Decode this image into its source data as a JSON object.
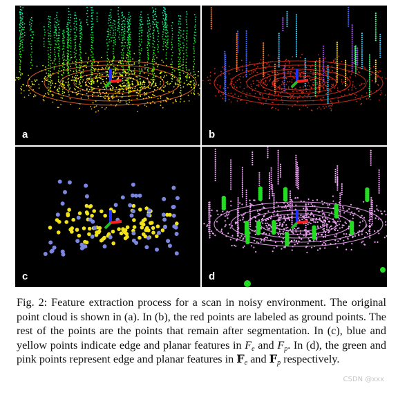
{
  "figure": {
    "panels": [
      {
        "id": "a",
        "label": "a",
        "description_icon": "point-cloud-colored-by-height"
      },
      {
        "id": "b",
        "label": "b",
        "description_icon": "point-cloud-segmented"
      },
      {
        "id": "c",
        "label": "c",
        "description_icon": "edge-planar-features"
      },
      {
        "id": "d",
        "label": "d",
        "description_icon": "edge-planar-map-features"
      }
    ],
    "colors": {
      "background": "#000000",
      "ground_red": "#d42a1a",
      "edge_blue": "#7b86e0",
      "planar_yellow": "#f2e21c",
      "edge_green": "#22dd22",
      "planar_pink": "#e9a0f0",
      "axis_red": "#ff2020",
      "axis_green": "#20c020",
      "axis_blue": "#2030ff"
    }
  },
  "caption": {
    "prefix": "Fig. 2: Feature extraction process for a scan in noisy environment. The original point cloud is shown in (a). In (b), the red points are labeled as ground points. The rest of the points are the points that remain after segmentation. In (c), blue and yellow points indicate edge and planar features in ",
    "fe_base": "F",
    "fe_sub": "e",
    "and1": " and ",
    "fp_base": "F",
    "fp_sub": "p",
    "mid": ". In (d), the green and pink points represent edge and planar features in ",
    "bbe_base": "F",
    "bbe_sub": "e",
    "and2": " and ",
    "bbp_base": "F",
    "bbp_sub": "p",
    "suffix": " respectively."
  },
  "watermark": "CSDN @xxx"
}
